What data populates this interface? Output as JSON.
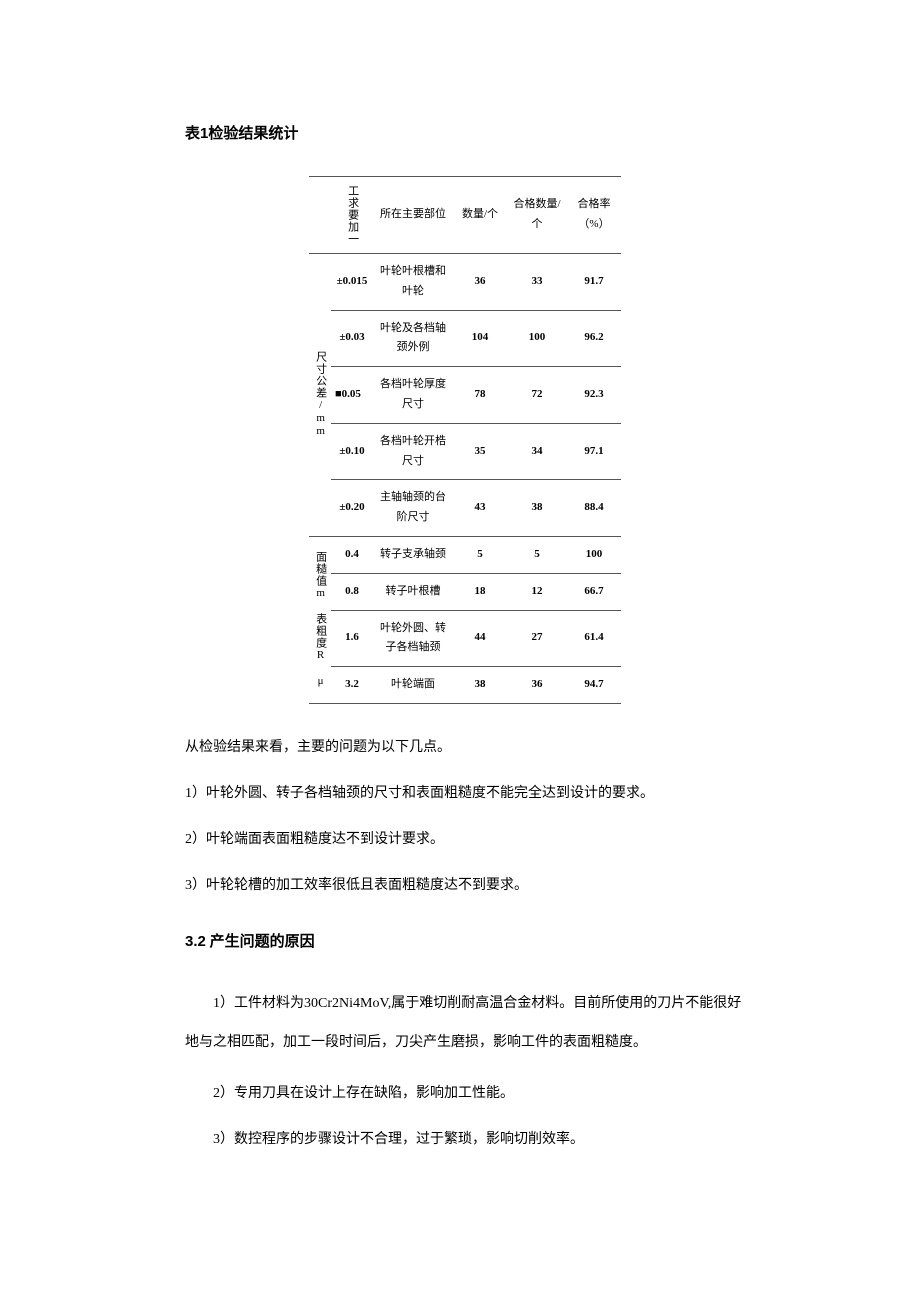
{
  "title_prefix": "表",
  "title_num": "1",
  "title_text": "检验结果统计",
  "table": {
    "headers": {
      "spec_header": "工求要加一",
      "loc": "所在主要部位",
      "qty": "数量/个",
      "pass": "合格数量/个",
      "rate": "合格率（%）"
    },
    "group1": {
      "label": "尺寸公差/mm",
      "rows": [
        {
          "spec": "±0.015",
          "loc": "叶轮叶根槽和叶轮",
          "qty": "36",
          "pass": "33",
          "rate": "91.7"
        },
        {
          "spec": "±0.03",
          "loc": "叶轮及各档轴颈外例",
          "qty": "104",
          "pass": "100",
          "rate": "96.2"
        },
        {
          "spec": "■0.05",
          "loc": "各档叶轮厚度尺寸",
          "qty": "78",
          "pass": "72",
          "rate": "92.3"
        },
        {
          "spec": "±0.10",
          "loc": "各档叶轮开梏尺寸",
          "qty": "35",
          "pass": "34",
          "rate": "97.1"
        },
        {
          "spec": "±0.20",
          "loc": "主轴轴颈的台阶尺寸",
          "qty": "43",
          "pass": "38",
          "rate": "88.4"
        }
      ]
    },
    "group2": {
      "label": "面糙值m 表粗度R μ",
      "rows": [
        {
          "spec": "0.4",
          "loc": "转子支承轴颈",
          "qty": "5",
          "pass": "5",
          "rate": "100"
        },
        {
          "spec": "0.8",
          "loc": "转子叶根槽",
          "qty": "18",
          "pass": "12",
          "rate": "66.7"
        },
        {
          "spec": "1.6",
          "loc": "叶轮外圆、转子各档轴颈",
          "qty": "44",
          "pass": "27",
          "rate": "61.4"
        },
        {
          "spec": "3.2",
          "loc": "叶轮端面",
          "qty": "38",
          "pass": "36",
          "rate": "94.7"
        }
      ]
    }
  },
  "intro": "从检验结果来看，主要的问题为以下几点。",
  "points_a": [
    "1）叶轮外圆、转子各档轴颈的尺寸和表面粗糙度不能完全达到设计的要求。",
    "2）叶轮端面表面粗糙度达不到设计要求。",
    "3）叶轮轮槽的加工效率很低且表面粗糙度达不到要求。"
  ],
  "section_num": "3.2",
  "section_text": "产生问题的原因",
  "points_b": [
    "1）工件材料为30Cr2Ni4MoV,属于难切削耐高温合金材料。目前所使用的刀片不能很好地与之相匹配，加工一段时间后，刀尖产生磨损，影响工件的表面粗糙度。",
    "2）专用刀具在设计上存在缺陷，影响加工性能。",
    "3）数控程序的步骤设计不合理，过于繁琐，影响切削效率。"
  ]
}
